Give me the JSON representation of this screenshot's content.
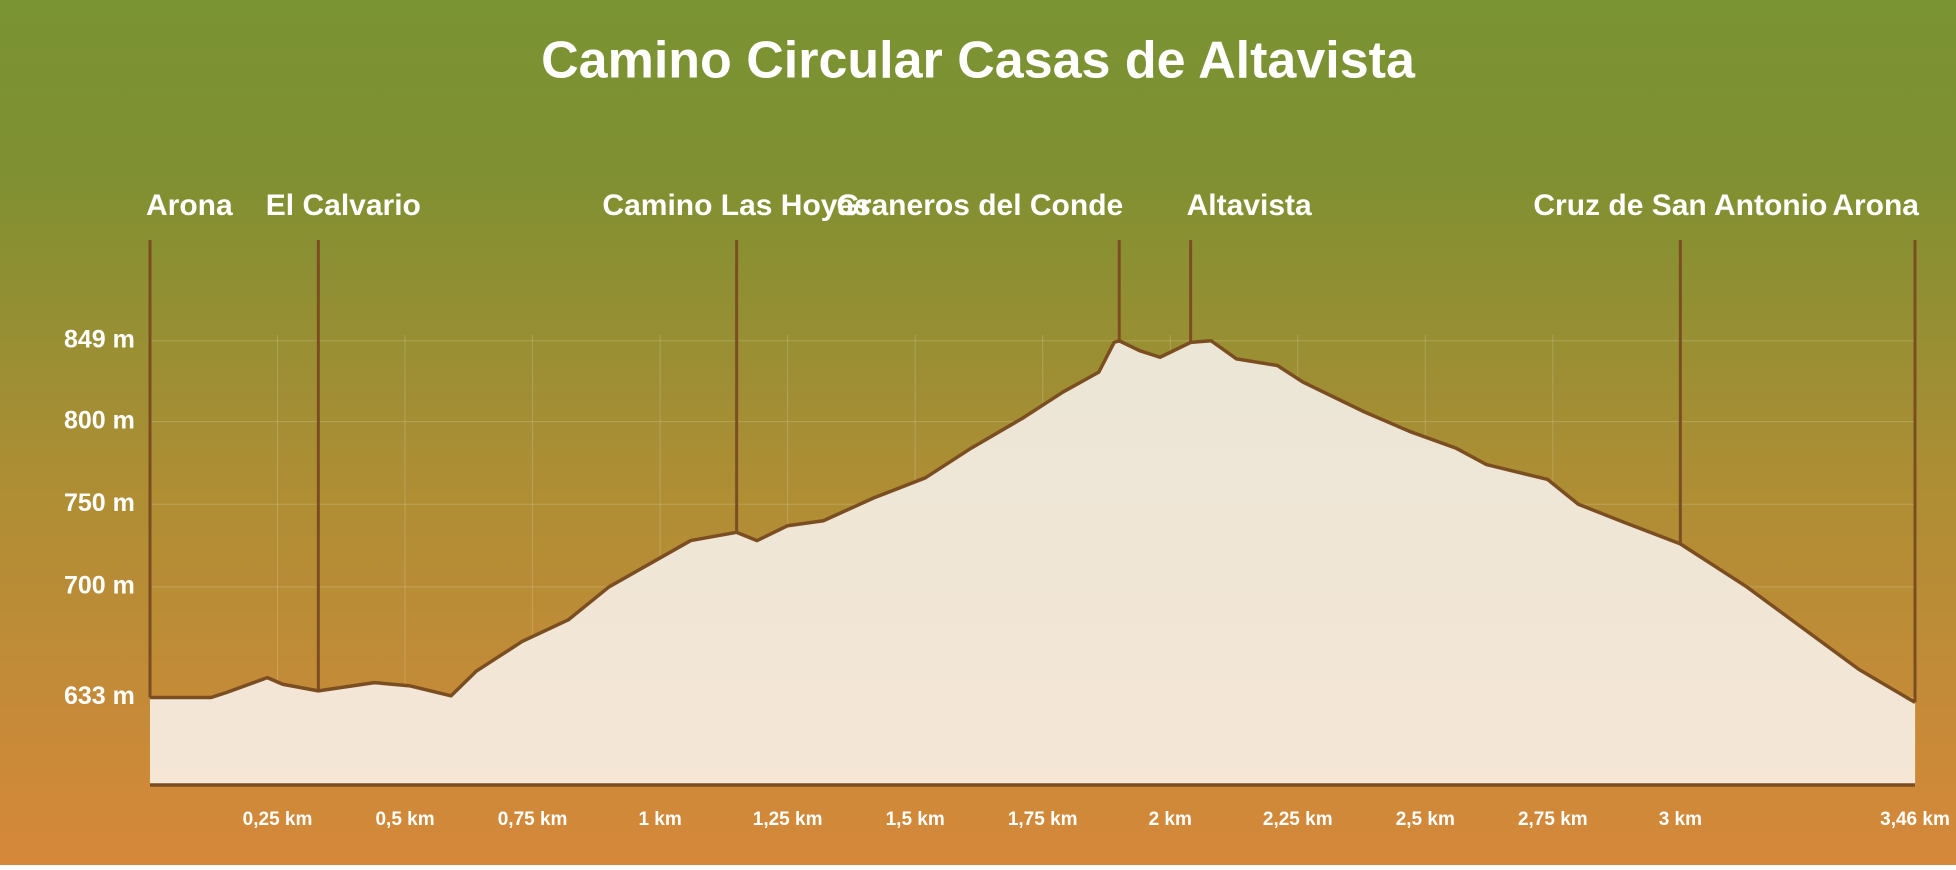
{
  "chart_data": {
    "type": "area",
    "title": "Camino Circular Casas de Altavista",
    "x": [
      0,
      0.12,
      0.15,
      0.23,
      0.26,
      0.33,
      0.44,
      0.51,
      0.59,
      0.64,
      0.68,
      0.73,
      0.82,
      0.9,
      0.98,
      1.06,
      1.15,
      1.19,
      1.25,
      1.32,
      1.42,
      1.52,
      1.61,
      1.71,
      1.79,
      1.86,
      1.89,
      1.9,
      1.94,
      1.98,
      2.04,
      2.08,
      2.13,
      2.21,
      2.26,
      2.38,
      2.47,
      2.56,
      2.62,
      2.74,
      2.8,
      2.89,
      3.0,
      3.13,
      3.24,
      3.35,
      3.46
    ],
    "values": [
      633,
      633,
      636,
      645,
      641,
      637,
      642,
      640,
      634,
      649,
      657,
      667,
      680,
      700,
      714,
      728,
      733,
      728,
      737,
      740,
      754,
      766,
      784,
      802,
      818,
      830,
      848,
      849,
      843,
      839,
      848,
      849,
      838,
      834,
      824,
      806,
      794,
      784,
      774,
      765,
      750,
      739,
      726,
      700,
      675,
      650,
      630
    ],
    "color": "#f2e7d9",
    "line_color": "#7b4e22",
    "xlim": [
      0,
      3.46
    ],
    "ylim": [
      580,
      910
    ],
    "xticks": [
      {
        "value": 0.25,
        "label": "0,25 km"
      },
      {
        "value": 0.5,
        "label": "0,5 km"
      },
      {
        "value": 0.75,
        "label": "0,75 km"
      },
      {
        "value": 1,
        "label": "1 km"
      },
      {
        "value": 1.25,
        "label": "1,25 km"
      },
      {
        "value": 1.5,
        "label": "1,5 km"
      },
      {
        "value": 1.75,
        "label": "1,75 km"
      },
      {
        "value": 2,
        "label": "2 km"
      },
      {
        "value": 2.25,
        "label": "2,25 km"
      },
      {
        "value": 2.5,
        "label": "2,5 km"
      },
      {
        "value": 2.75,
        "label": "2,75 km"
      },
      {
        "value": 3,
        "label": "3 km"
      },
      {
        "value": 3.46,
        "label": "3,46 km"
      }
    ],
    "yticks": [
      {
        "value": 633,
        "label": "633 m"
      },
      {
        "value": 700,
        "label": "700 m"
      },
      {
        "value": 750,
        "label": "750 m"
      },
      {
        "value": 800,
        "label": "800 m"
      },
      {
        "value": 849,
        "label": "849 m"
      }
    ],
    "grid": true,
    "waypoints": [
      {
        "name": "Arona",
        "x": 0
      },
      {
        "name": "El Calvario",
        "x": 0.33
      },
      {
        "name": "Camino Las Hoyas",
        "x": 1.15
      },
      {
        "name": "Graneros del Conde",
        "x": 1.9
      },
      {
        "name": "Altavista",
        "x": 2.04
      },
      {
        "name": "Cruz de San Antonio",
        "x": 3.0
      },
      {
        "name": "Arona",
        "x": 3.46
      }
    ]
  }
}
